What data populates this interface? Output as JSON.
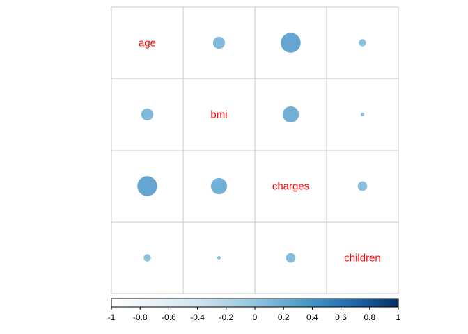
{
  "chart_data": {
    "type": "heatmap",
    "subtype": "correlation-matrix-circles",
    "variables": [
      "age",
      "bmi",
      "charges",
      "children"
    ],
    "matrix": [
      [
        1.0,
        0.11,
        0.3,
        0.04
      ],
      [
        0.11,
        1.0,
        0.2,
        0.01
      ],
      [
        0.3,
        0.2,
        1.0,
        0.07
      ],
      [
        0.04,
        0.01,
        0.07,
        1.0
      ]
    ],
    "diagonal_shows": "variable names",
    "colorbar": {
      "range": [
        -1,
        1
      ],
      "ticks": [
        "-1",
        "-0.8",
        "-0.6",
        "-0.4",
        "-0.2",
        "0",
        "0.2",
        "0.4",
        "0.6",
        "0.8",
        "1"
      ],
      "colors": [
        "#ffffff",
        "#d1e5f0",
        "#92c5de",
        "#4393c3",
        "#2166ac",
        "#053061"
      ]
    },
    "grid": true,
    "label_color": "#ff0000"
  }
}
